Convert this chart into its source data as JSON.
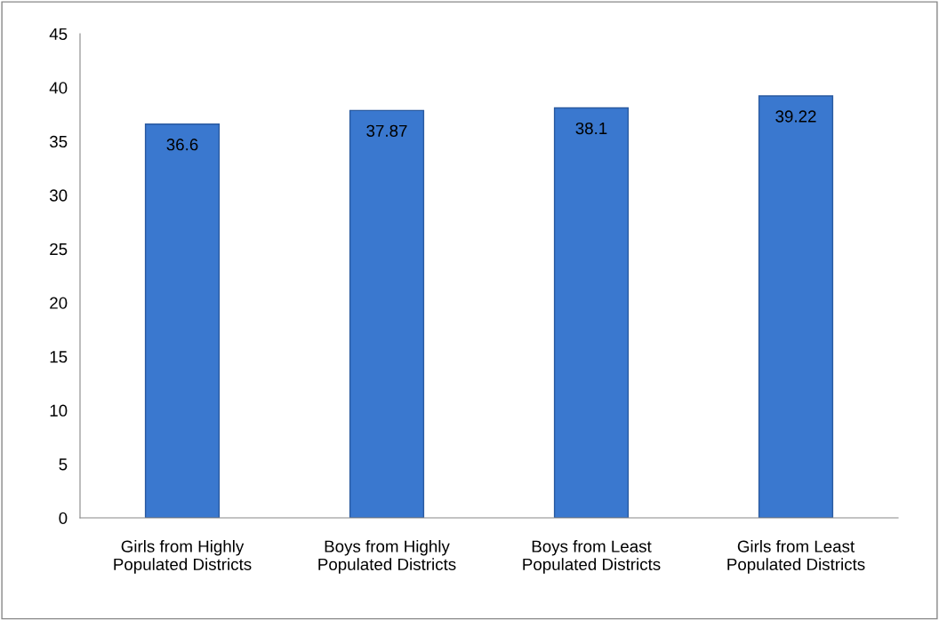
{
  "chart_data": {
    "type": "bar",
    "categories": [
      "Girls from Highly\nPopulated Districts",
      "Boys from Highly\nPopulated Districts",
      "Boys from Least\nPopulated Districts",
      "Girls from Least\nPopulated Districts"
    ],
    "values": [
      36.6,
      37.87,
      38.1,
      39.22
    ],
    "color": "#3a78cf",
    "ylim": [
      0,
      45
    ],
    "yticks": [
      0,
      5,
      10,
      15,
      20,
      25,
      30,
      35,
      40,
      45
    ],
    "grid": false,
    "legend": false,
    "data_labels": true
  }
}
